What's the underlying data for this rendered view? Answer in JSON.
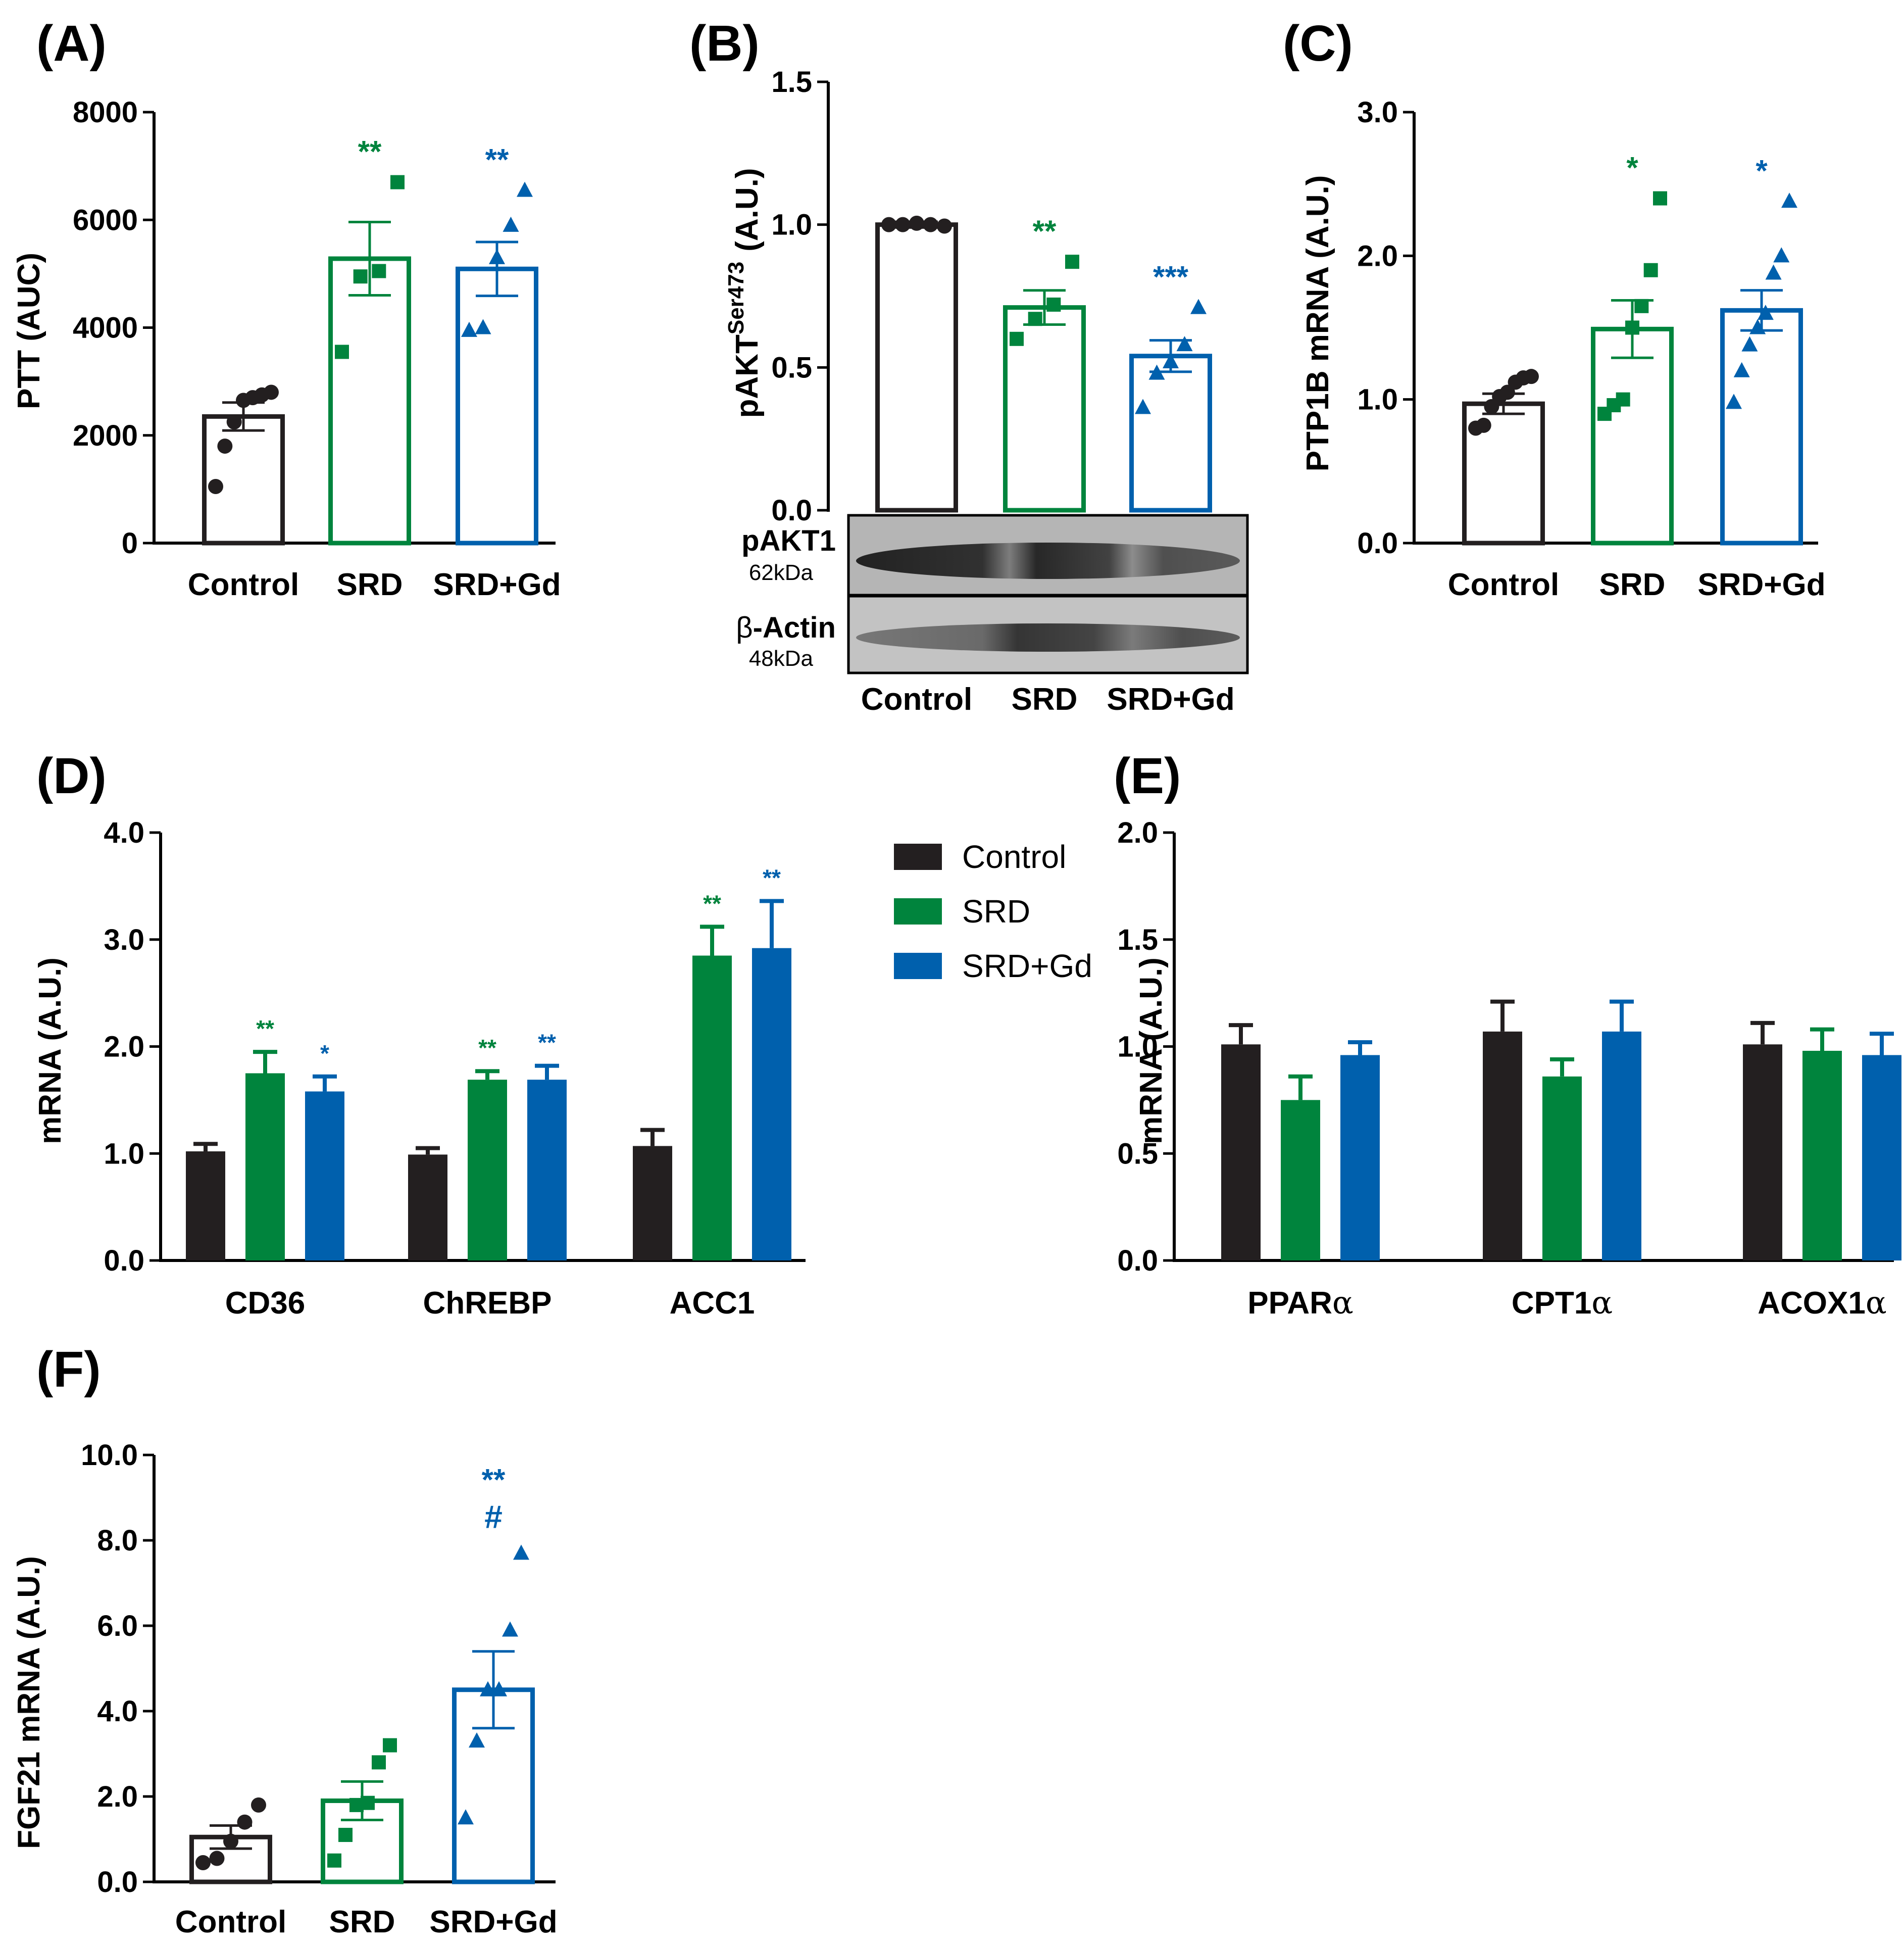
{
  "colors": {
    "control": "#231f20",
    "srd": "#00843d",
    "srdgd": "#0060ad"
  },
  "panels": [
    {
      "id": "A",
      "label": "(A)"
    },
    {
      "id": "B",
      "label": "(B)"
    },
    {
      "id": "C",
      "label": "(C)"
    },
    {
      "id": "D",
      "label": "(D)"
    },
    {
      "id": "E",
      "label": "(E)"
    },
    {
      "id": "F",
      "label": "(F)"
    }
  ],
  "chart_data": [
    {
      "id": "A",
      "type": "bar",
      "title": "",
      "ylabel": "PTT (AUC)",
      "xlabel": "",
      "ylim": [
        0,
        8000
      ],
      "yticks": [
        "0",
        "2000",
        "4000",
        "6000",
        "8000"
      ],
      "categories": [
        "Control",
        "SRD",
        "SRD+Gd"
      ],
      "means": [
        2350,
        5280,
        5090
      ],
      "sem": [
        260,
        680,
        500
      ],
      "points": [
        [
          1050,
          1800,
          2250,
          2650,
          2700,
          2750,
          2800
        ],
        [
          3550,
          4950,
          5050,
          6700
        ],
        [
          3950,
          4000,
          5300,
          5900,
          6550
        ]
      ],
      "significance": [
        "",
        "**",
        "**"
      ]
    },
    {
      "id": "B",
      "type": "bar",
      "title": "",
      "ylabel": "pAKTSer473 (A.U.)",
      "ylabel_main": "pAKT",
      "ylabel_sup": "Ser473",
      "ylabel_unit": "(A.U.)",
      "xlabel": "",
      "ylim": [
        0,
        1.5
      ],
      "yticks": [
        "0.0",
        "0.5",
        "1.0",
        "1.5"
      ],
      "categories": [
        "Control",
        "SRD",
        "SRD+Gd"
      ],
      "means": [
        1.0,
        0.71,
        0.54
      ],
      "sem": [
        0.01,
        0.06,
        0.055
      ],
      "points": [
        [
          1.0,
          1.0,
          1.005,
          1.0,
          0.995
        ],
        [
          0.6,
          0.67,
          0.72,
          0.87
        ],
        [
          0.36,
          0.48,
          0.52,
          0.58,
          0.71
        ]
      ],
      "significance": [
        "",
        "**",
        "***"
      ],
      "blots": [
        {
          "name": "pAKT1",
          "size": "62kDa"
        },
        {
          "prefix": "β",
          "name": "-Actin",
          "size": "48kDa"
        }
      ]
    },
    {
      "id": "C",
      "type": "bar",
      "title": "",
      "ylabel": "PTP1B mRNA (A.U.)",
      "xlabel": "",
      "ylim": [
        0,
        3.0
      ],
      "yticks": [
        "0.0",
        "1.0",
        "2.0",
        "3.0"
      ],
      "categories": [
        "Control",
        "SRD",
        "SRD+Gd"
      ],
      "means": [
        0.97,
        1.49,
        1.62
      ],
      "sem": [
        0.07,
        0.2,
        0.14
      ],
      "points": [
        [
          0.8,
          0.82,
          0.95,
          1.02,
          1.05,
          1.12,
          1.15,
          1.16
        ],
        [
          0.9,
          0.96,
          1.0,
          1.5,
          1.65,
          1.9,
          2.4
        ],
        [
          0.98,
          1.2,
          1.38,
          1.5,
          1.6,
          1.88,
          2.0,
          2.38
        ]
      ],
      "significance": [
        "",
        "*",
        "*"
      ]
    },
    {
      "id": "D",
      "type": "bar",
      "title": "",
      "ylabel": "mRNA (A.U.)",
      "xlabel": "",
      "ylim": [
        0,
        4.0
      ],
      "yticks": [
        "0.0",
        "1.0",
        "2.0",
        "3.0",
        "4.0"
      ],
      "categories": [
        "CD36",
        "ChREBP",
        "ACC1"
      ],
      "series": [
        {
          "name": "Control",
          "values": [
            1.02,
            0.99,
            1.07
          ],
          "sem": [
            0.07,
            0.06,
            0.15
          ]
        },
        {
          "name": "SRD",
          "values": [
            1.75,
            1.69,
            2.85
          ],
          "sem": [
            0.2,
            0.08,
            0.27
          ]
        },
        {
          "name": "SRD+Gd",
          "values": [
            1.58,
            1.69,
            2.92
          ],
          "sem": [
            0.14,
            0.13,
            0.44
          ]
        }
      ],
      "significance": [
        [
          "",
          "**",
          "*"
        ],
        [
          "",
          "**",
          "**"
        ],
        [
          "",
          "**",
          "**"
        ]
      ],
      "legend": {
        "position": "right",
        "entries": [
          "Control",
          "SRD",
          "SRD+Gd"
        ]
      }
    },
    {
      "id": "E",
      "type": "bar",
      "title": "",
      "ylabel": "mRNA (A.U.)",
      "xlabel": "",
      "ylim": [
        0,
        2.0
      ],
      "yticks": [
        "0.0",
        "0.5",
        "1.0",
        "1.5",
        "2.0"
      ],
      "categories": [
        "PPARα",
        "CPT1α",
        "ACOX1α"
      ],
      "category_names": [
        "PPAR",
        "CPT1",
        "ACOX1"
      ],
      "category_suffix": "α",
      "series": [
        {
          "name": "Control",
          "values": [
            1.01,
            1.07,
            1.01
          ],
          "sem": [
            0.09,
            0.14,
            0.1
          ]
        },
        {
          "name": "SRD",
          "values": [
            0.75,
            0.86,
            0.98
          ],
          "sem": [
            0.11,
            0.08,
            0.1
          ]
        },
        {
          "name": "SRD+Gd",
          "values": [
            0.96,
            1.07,
            0.96
          ],
          "sem": [
            0.06,
            0.14,
            0.1
          ]
        }
      ]
    },
    {
      "id": "F",
      "type": "bar",
      "title": "",
      "ylabel": "FGF21 mRNA (A.U.)",
      "xlabel": "",
      "ylim": [
        0,
        10.0
      ],
      "yticks": [
        "0.0",
        "2.0",
        "4.0",
        "6.0",
        "8.0",
        "10.0"
      ],
      "categories": [
        "Control",
        "SRD",
        "SRD+Gd"
      ],
      "means": [
        1.05,
        1.9,
        4.5
      ],
      "sem": [
        0.27,
        0.45,
        0.9
      ],
      "points": [
        [
          0.45,
          0.55,
          0.95,
          1.4,
          1.8
        ],
        [
          0.5,
          1.1,
          1.8,
          1.85,
          2.8,
          3.2
        ],
        [
          1.5,
          3.3,
          4.5,
          4.5,
          5.9,
          7.7
        ]
      ],
      "significance": [
        "",
        "",
        "**"
      ],
      "significance_extra": [
        "",
        "",
        "#"
      ]
    }
  ]
}
